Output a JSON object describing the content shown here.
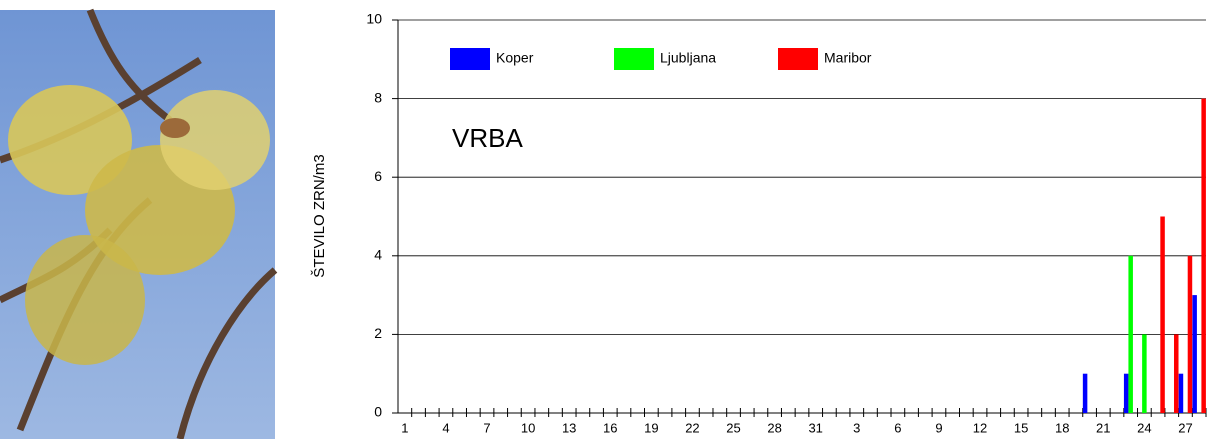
{
  "chart_data": {
    "type": "bar",
    "annotation": "VRBA",
    "y_label": "ŠTEVILO ZRN/m3",
    "categories": [
      "1",
      null,
      null,
      "4",
      null,
      null,
      "7",
      null,
      null,
      "10",
      null,
      null,
      "13",
      null,
      null,
      "16",
      null,
      null,
      "19",
      null,
      null,
      "22",
      null,
      null,
      "25",
      null,
      null,
      "28",
      null,
      null,
      "31",
      null,
      null,
      "3",
      null,
      null,
      "6",
      null,
      null,
      "9",
      null,
      null,
      "12",
      null,
      null,
      "15",
      null,
      null,
      "18",
      null,
      null,
      "21",
      null,
      null,
      "24",
      null,
      null,
      "27",
      null
    ],
    "series": [
      {
        "name": "Koper",
        "color": "#0000ff",
        "values": [
          0,
          0,
          0,
          0,
          0,
          0,
          0,
          0,
          0,
          0,
          0,
          0,
          0,
          0,
          0,
          0,
          0,
          0,
          0,
          0,
          0,
          0,
          0,
          0,
          0,
          0,
          0,
          0,
          0,
          0,
          0,
          0,
          0,
          0,
          0,
          0,
          0,
          0,
          0,
          0,
          0,
          0,
          0,
          0,
          0,
          0,
          0,
          0,
          0,
          0,
          1,
          0,
          0,
          1,
          0,
          0,
          0,
          1,
          3
        ]
      },
      {
        "name": "Ljubljana",
        "color": "#00ff00",
        "values": [
          0,
          0,
          0,
          0,
          0,
          0,
          0,
          0,
          0,
          0,
          0,
          0,
          0,
          0,
          0,
          0,
          0,
          0,
          0,
          0,
          0,
          0,
          0,
          0,
          0,
          0,
          0,
          0,
          0,
          0,
          0,
          0,
          0,
          0,
          0,
          0,
          0,
          0,
          0,
          0,
          0,
          0,
          0,
          0,
          0,
          0,
          0,
          0,
          0,
          0,
          0,
          0,
          0,
          4,
          2,
          0,
          0,
          0,
          0
        ]
      },
      {
        "name": "Maribor",
        "color": "#ff0000",
        "values": [
          0,
          0,
          0,
          0,
          0,
          0,
          0,
          0,
          0,
          0,
          0,
          0,
          0,
          0,
          0,
          0,
          0,
          0,
          0,
          0,
          0,
          0,
          0,
          0,
          0,
          0,
          0,
          0,
          0,
          0,
          0,
          0,
          0,
          0,
          0,
          0,
          0,
          0,
          0,
          0,
          0,
          0,
          0,
          0,
          0,
          0,
          0,
          0,
          0,
          0,
          0,
          0,
          0,
          0,
          0,
          5,
          2,
          4,
          8
        ]
      }
    ],
    "ylim": [
      0,
      10
    ],
    "yticks": [
      0,
      2,
      4,
      6,
      8,
      10
    ],
    "grid": true
  }
}
